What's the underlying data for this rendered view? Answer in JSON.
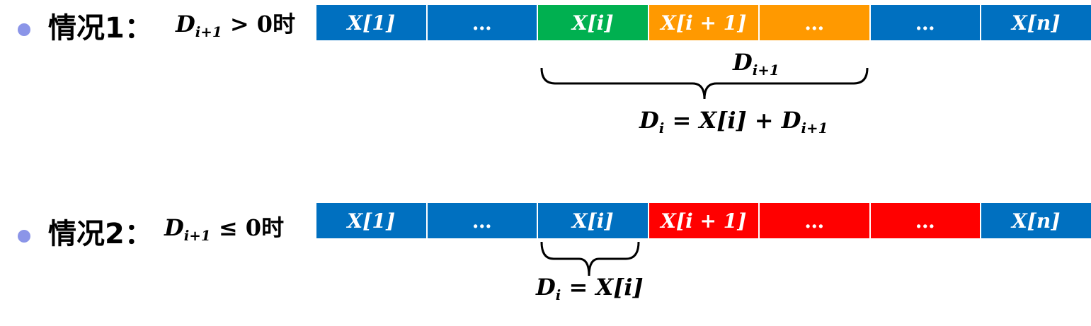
{
  "colors": {
    "blue": "#0070c0",
    "green": "#00b050",
    "orange": "#ff9900",
    "red": "#ff0000",
    "bullet": "#8b95e8"
  },
  "case1": {
    "title": "情况1：",
    "cond_D": "D",
    "cond_sub": "i+1",
    "cond_rest": " > 0",
    "cond_shi": "时",
    "cells": [
      {
        "label": "X[1]",
        "color": "#0070c0"
      },
      {
        "label": "…",
        "color": "#0070c0"
      },
      {
        "label": "X[i]",
        "color": "#00b050"
      },
      {
        "label": "X[i + 1]",
        "color": "#ff9900"
      },
      {
        "label": "…",
        "color": "#ff9900"
      },
      {
        "label": "…",
        "color": "#0070c0"
      },
      {
        "label": "X[n]",
        "color": "#0070c0"
      }
    ],
    "brace_label_D": "D",
    "brace_label_sub": "i+1",
    "formula_D": "D",
    "formula_sub": "i",
    "formula_mid": " = X[i] + D",
    "formula_sub2": "i+1"
  },
  "case2": {
    "title": "情况2：",
    "cond_D": "D",
    "cond_sub": "i+1",
    "cond_rest": " ≤ 0",
    "cond_shi": "时",
    "cells": [
      {
        "label": "X[1]",
        "color": "#0070c0"
      },
      {
        "label": "…",
        "color": "#0070c0"
      },
      {
        "label": "X[i]",
        "color": "#0070c0"
      },
      {
        "label": "X[i + 1]",
        "color": "#ff0000"
      },
      {
        "label": "…",
        "color": "#ff0000"
      },
      {
        "label": "…",
        "color": "#ff0000"
      },
      {
        "label": "X[n]",
        "color": "#0070c0"
      }
    ],
    "formula_D": "D",
    "formula_sub": "i",
    "formula_rest": " = X[i]"
  }
}
